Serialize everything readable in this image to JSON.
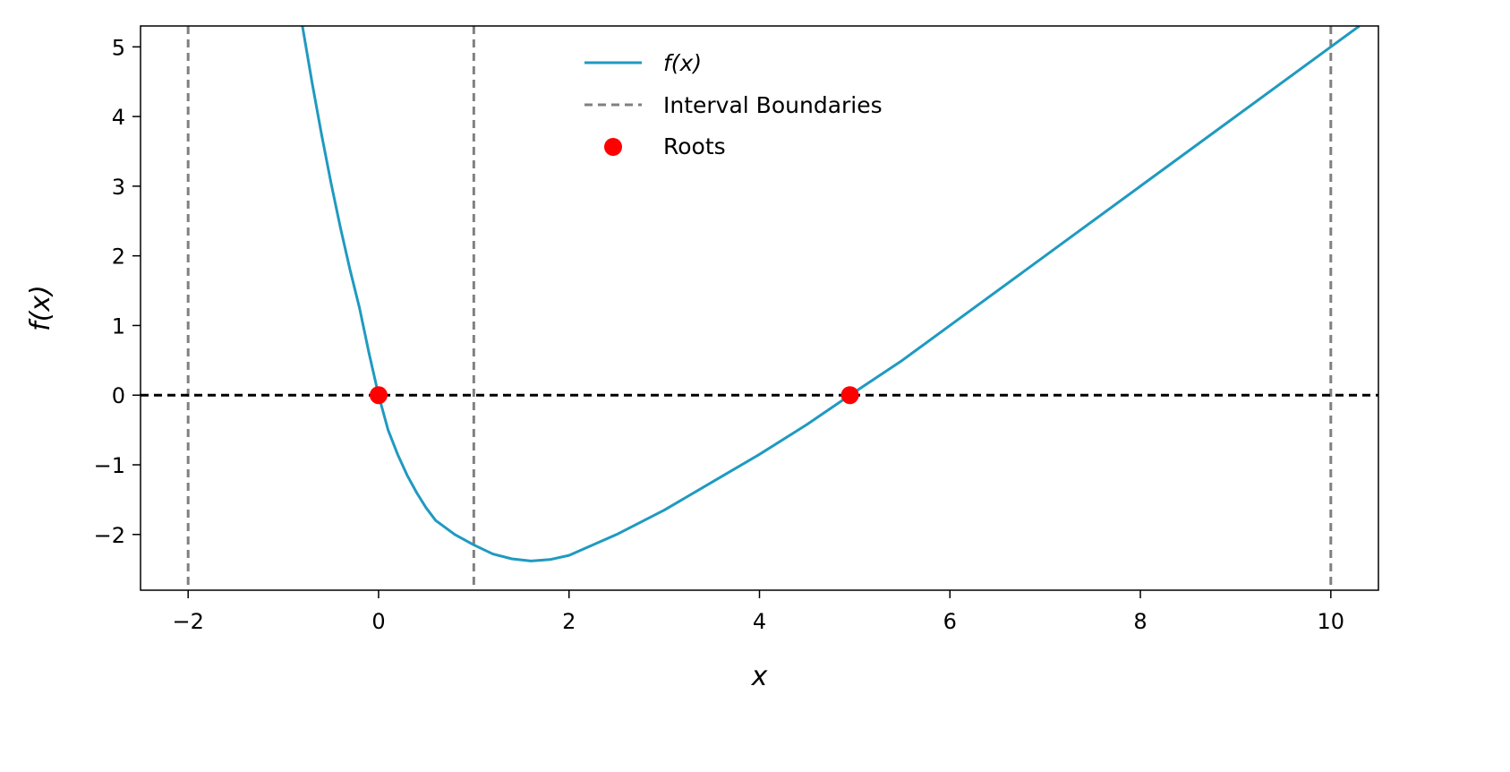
{
  "chart_data": {
    "type": "line",
    "title": "",
    "xlabel": "x",
    "ylabel": "f(x)",
    "xlim": [
      -2.5,
      10.5
    ],
    "ylim": [
      -2.8,
      5.3
    ],
    "x_ticks": [
      -2,
      0,
      2,
      4,
      6,
      8,
      10
    ],
    "x_tick_labels": [
      "−2",
      "0",
      "2",
      "4",
      "6",
      "8",
      "10"
    ],
    "y_ticks": [
      -2,
      -1,
      0,
      1,
      2,
      3,
      4,
      5
    ],
    "y_tick_labels": [
      "−2",
      "−1",
      "0",
      "1",
      "2",
      "3",
      "4",
      "5"
    ],
    "grid": false,
    "legend_position": "top-center",
    "series": [
      {
        "name": "f(x)",
        "kind": "line",
        "color": "#1f9ac0",
        "x": [
          -0.8,
          -0.7,
          -0.6,
          -0.5,
          -0.4,
          -0.3,
          -0.2,
          -0.1,
          0.0,
          0.1,
          0.2,
          0.3,
          0.4,
          0.5,
          0.6,
          0.8,
          1.0,
          1.2,
          1.4,
          1.6,
          1.8,
          2.0,
          2.5,
          3.0,
          3.5,
          4.0,
          4.5,
          4.95,
          5.5,
          6.0,
          7.0,
          8.0,
          9.0,
          10.0,
          10.3
        ],
        "y": [
          5.3,
          4.5,
          3.75,
          3.05,
          2.4,
          1.8,
          1.25,
          0.6,
          0.0,
          -0.5,
          -0.85,
          -1.15,
          -1.4,
          -1.62,
          -1.8,
          -2.0,
          -2.15,
          -2.28,
          -2.35,
          -2.38,
          -2.36,
          -2.3,
          -2.0,
          -1.65,
          -1.25,
          -0.85,
          -0.42,
          0.0,
          0.5,
          1.0,
          2.0,
          3.0,
          4.0,
          5.0,
          5.3
        ]
      },
      {
        "name": "Interval Boundaries",
        "kind": "vline",
        "color": "#808080",
        "x": [
          -2,
          1,
          10
        ]
      },
      {
        "name": "Roots",
        "kind": "scatter",
        "color": "#ff0000",
        "x": [
          0.0,
          4.95
        ],
        "y": [
          0.0,
          0.0
        ]
      }
    ],
    "hline": {
      "y": 0,
      "color": "#000000"
    }
  }
}
